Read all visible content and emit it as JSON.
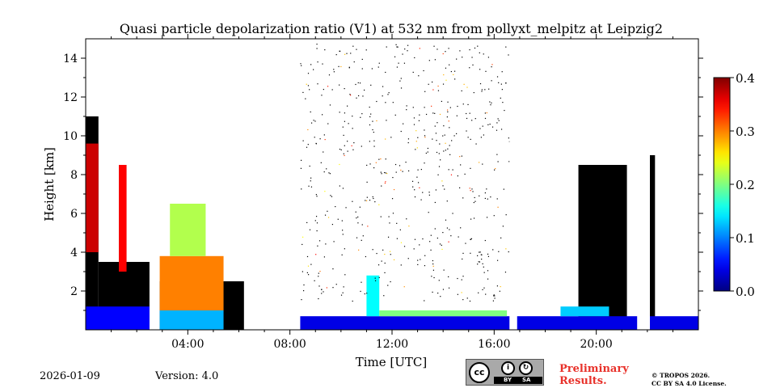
{
  "chart_data": {
    "type": "heatmap",
    "title": "Quasi particle depolarization ratio (V1) at 532 nm from pollyxt_melpitz at Leipzig2",
    "xlabel": "Time [UTC]",
    "ylabel": "Height [km]",
    "xlim_hours": [
      0,
      24
    ],
    "ylim_km": [
      0,
      15
    ],
    "x_ticks": [
      {
        "value": 4,
        "label": "04:00"
      },
      {
        "value": 8,
        "label": "08:00"
      },
      {
        "value": 12,
        "label": "12:00"
      },
      {
        "value": 16,
        "label": "16:00"
      },
      {
        "value": 20,
        "label": "20:00"
      }
    ],
    "y_ticks": [
      {
        "value": 2,
        "label": "2"
      },
      {
        "value": 4,
        "label": "4"
      },
      {
        "value": 6,
        "label": "6"
      },
      {
        "value": 8,
        "label": "8"
      },
      {
        "value": 10,
        "label": "10"
      },
      {
        "value": 12,
        "label": "12"
      },
      {
        "value": 14,
        "label": "14"
      }
    ],
    "colorbar": {
      "colormap": "jet",
      "range": [
        0.0,
        0.4
      ],
      "ticks": [
        {
          "value": 0.0,
          "label": "0.0"
        },
        {
          "value": 0.1,
          "label": "0.1"
        },
        {
          "value": 0.2,
          "label": "0.2"
        },
        {
          "value": 0.3,
          "label": "0.3"
        },
        {
          "value": 0.4,
          "label": "0.4"
        }
      ]
    },
    "data_gaps_hours": [
      [
        2.5,
        2.8
      ],
      [
        6.5,
        6.9
      ],
      [
        7.4,
        8.4
      ],
      [
        16.6,
        16.9
      ],
      [
        21.6,
        22.1
      ]
    ],
    "blocks": [
      {
        "t0": 0.0,
        "t1": 2.5,
        "h0": 0.0,
        "h1": 1.2,
        "v": 0.05
      },
      {
        "t0": 0.0,
        "t1": 0.5,
        "h0": 4.0,
        "h1": 9.6,
        "v": 0.37
      },
      {
        "t0": 1.3,
        "t1": 1.6,
        "h0": 3.0,
        "h1": 8.5,
        "v": 0.35
      },
      {
        "t0": 2.9,
        "t1": 5.4,
        "h0": 0.0,
        "h1": 1.0,
        "v": 0.12
      },
      {
        "t0": 2.9,
        "t1": 5.4,
        "h0": 1.0,
        "h1": 3.8,
        "v": 0.3
      },
      {
        "t0": 3.3,
        "t1": 4.7,
        "h0": 3.8,
        "h1": 6.5,
        "v": 0.22
      },
      {
        "t0": 8.4,
        "t1": 24.0,
        "h0": 0.0,
        "h1": 0.7,
        "v": 0.04
      },
      {
        "t0": 11.0,
        "t1": 11.5,
        "h0": 0.7,
        "h1": 2.8,
        "v": 0.15
      },
      {
        "t0": 11.5,
        "t1": 16.5,
        "h0": 0.7,
        "h1": 1.0,
        "v": 0.2
      },
      {
        "t0": 18.6,
        "t1": 20.5,
        "h0": 0.7,
        "h1": 1.2,
        "v": 0.13
      }
    ],
    "signal_regions": [
      {
        "t0": 0.0,
        "t1": 0.5,
        "h0": 0.0,
        "h1": 11.0
      },
      {
        "t0": 0.5,
        "t1": 2.5,
        "h0": 0.0,
        "h1": 3.5
      },
      {
        "t0": 1.3,
        "t1": 1.6,
        "h0": 0.0,
        "h1": 8.5
      },
      {
        "t0": 2.9,
        "t1": 6.2,
        "h0": 0.0,
        "h1": 2.5
      },
      {
        "t0": 19.3,
        "t1": 21.2,
        "h0": 0.0,
        "h1": 8.5
      },
      {
        "t0": 22.1,
        "t1": 22.3,
        "h0": 0.0,
        "h1": 9.0
      }
    ]
  },
  "footer": {
    "date": "2026-01-09",
    "version": "Version: 4.0",
    "preliminary_line1": "Preliminary",
    "preliminary_line2": "Results.",
    "copyright_line1": "© TROPOS 2026.",
    "copyright_line2": "CC BY SA 4.0 License.",
    "license_badge": {
      "cc": "cc",
      "by": "BY",
      "sa": "SA"
    }
  },
  "colors": {
    "no_data_signal": "#000000",
    "background": "#ffffff"
  }
}
